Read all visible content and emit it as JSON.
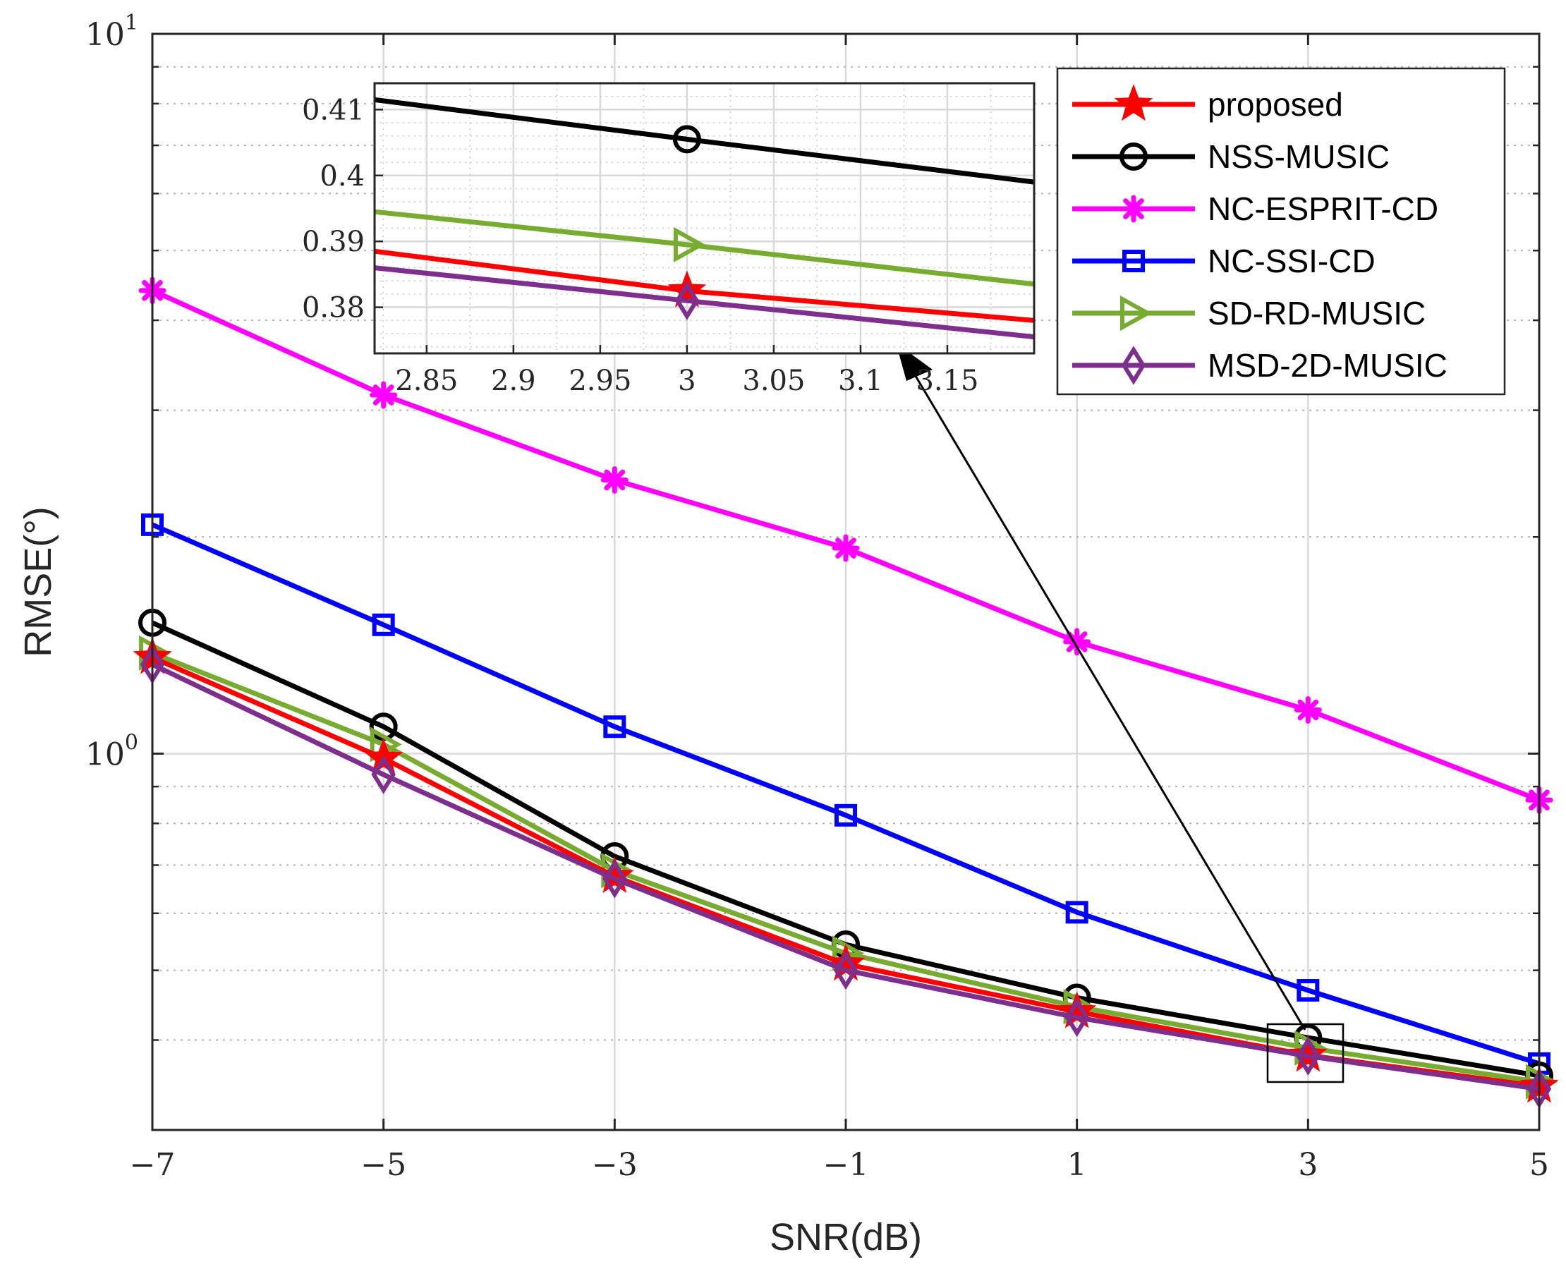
{
  "chart_data": {
    "type": "line",
    "xlabel": "SNR(dB)",
    "ylabel": "RMSE(°)",
    "y_scale": "log",
    "ylim": [
      0.3,
      10
    ],
    "xlim": [
      -7,
      5
    ],
    "x_ticks": [
      -7,
      -5,
      -3,
      -1,
      1,
      3,
      5
    ],
    "x_tick_labels": [
      "−7",
      "−5",
      "−3",
      "−1",
      "1",
      "3",
      "5"
    ],
    "y_tick_labels": [
      {
        "base": "10",
        "exp": "0"
      },
      {
        "base": "10",
        "exp": "1"
      }
    ],
    "grid": true,
    "legend_position": "top-right",
    "x": [
      -7,
      -5,
      -3,
      -1,
      1,
      3,
      5
    ],
    "series": [
      {
        "name": "proposed",
        "color": "#ff0000",
        "marker": "star",
        "values": [
          1.36,
          0.985,
          0.675,
          0.51,
          0.438,
          0.381,
          0.345
        ]
      },
      {
        "name": "NSS-MUSIC",
        "color": "#000000",
        "marker": "circle",
        "values": [
          1.52,
          1.09,
          0.72,
          0.543,
          0.458,
          0.403,
          0.357
        ]
      },
      {
        "name": "NC-ESPRIT-CD",
        "color": "#ff00ff",
        "marker": "asterisk",
        "values": [
          4.4,
          3.15,
          2.4,
          1.93,
          1.43,
          1.15,
          0.862
        ]
      },
      {
        "name": "NC-SSI-CD",
        "color": "#0000ff",
        "marker": "square",
        "values": [
          2.08,
          1.51,
          1.09,
          0.821,
          0.602,
          0.469,
          0.371
        ]
      },
      {
        "name": "SD-RD-MUSIC",
        "color": "#77ac30",
        "marker": "triangle-right",
        "values": [
          1.38,
          1.03,
          0.688,
          0.528,
          0.445,
          0.39,
          0.35
        ]
      },
      {
        "name": "MSD-2D-MUSIC",
        "color": "#7e2f8e",
        "marker": "diamond",
        "values": [
          1.33,
          0.935,
          0.67,
          0.5,
          0.43,
          0.38,
          0.342
        ]
      }
    ],
    "inset": {
      "xlim": [
        2.82,
        3.2
      ],
      "ylim": [
        0.373,
        0.414
      ],
      "x_ticks": [
        2.85,
        2.9,
        2.95,
        3,
        3.05,
        3.1,
        3.15
      ],
      "x_tick_labels": [
        "2.85",
        "2.9",
        "2.95",
        "3",
        "3.05",
        "3.1",
        "3.15"
      ],
      "y_ticks": [
        0.38,
        0.39,
        0.4,
        0.41
      ],
      "y_tick_labels": [
        "0.38",
        "0.39",
        "0.4",
        "0.41"
      ],
      "series_values": [
        {
          "name": "proposed",
          "y_at_start": 0.3885,
          "y_at_3": 0.3825,
          "y_at_end": 0.378
        },
        {
          "name": "NSS-MUSIC",
          "y_at_start": 0.4115,
          "y_at_3": 0.4055,
          "y_at_end": 0.399
        },
        {
          "name": "NC-ESPRIT-CD",
          "y_at_start": null,
          "y_at_3": null,
          "y_at_end": null
        },
        {
          "name": "NC-SSI-CD",
          "y_at_start": null,
          "y_at_3": null,
          "y_at_end": null
        },
        {
          "name": "SD-RD-MUSIC",
          "y_at_start": 0.3945,
          "y_at_3": 0.3895,
          "y_at_end": 0.3835
        },
        {
          "name": "MSD-2D-MUSIC",
          "y_at_start": 0.386,
          "y_at_3": 0.381,
          "y_at_end": 0.3755
        }
      ]
    }
  }
}
